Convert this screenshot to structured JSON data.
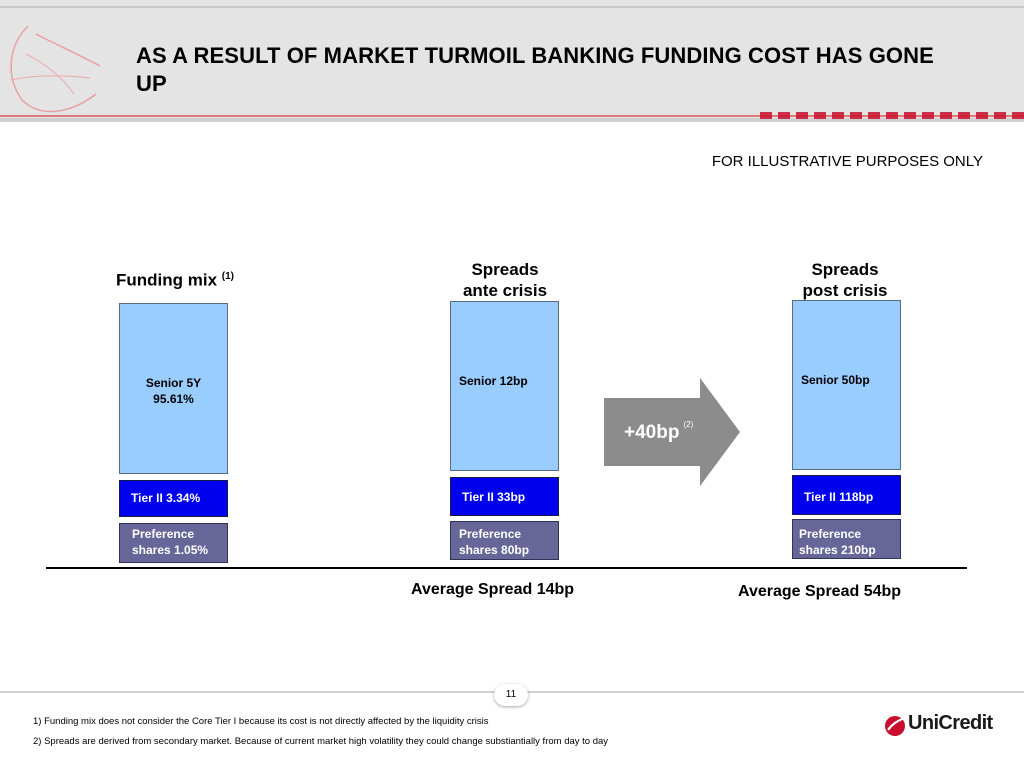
{
  "title": "AS A RESULT OF MARKET TURMOIL BANKING FUNDING COST HAS GONE UP",
  "disclaimer": "FOR ILLUSTRATIVE PURPOSES ONLY",
  "columns": [
    {
      "heading_line1": "Funding mix",
      "heading_sup": "(1)",
      "senior": "Senior 5Y",
      "senior_value": "95.61%",
      "tier": "Tier II  3.34%",
      "pref_line1": "Preference",
      "pref_line2": "shares  1.05%"
    },
    {
      "heading_line1": "Spreads",
      "heading_line2": "ante crisis",
      "senior": "Senior 12bp",
      "tier": "Tier II 33bp",
      "pref_line1": "Preference",
      "pref_line2": "shares 80bp",
      "average": "Average Spread 14bp"
    },
    {
      "heading_line1": "Spreads",
      "heading_line2": "post crisis",
      "senior": "Senior 50bp",
      "tier": "Tier II 118bp",
      "pref_line1": "Preference",
      "pref_line2": "shares 210bp",
      "average": "Average Spread 54bp"
    }
  ],
  "arrow": {
    "label": "+40bp",
    "sup": "(2)"
  },
  "page_number": "11",
  "footnotes": [
    "1) Funding mix does not consider the Core Tier I because its cost is not directly affected by the liquidity crisis",
    "2) Spreads are derived from secondary market. Because of current market high volatility they could change substiantially from day to day"
  ],
  "brand": {
    "name": "UniCredit",
    "color": "#c8102e"
  },
  "colors": {
    "senior": "#99ccff",
    "tier": "#0000ee",
    "preference": "#666699",
    "arrow": "#8c8c8c"
  }
}
